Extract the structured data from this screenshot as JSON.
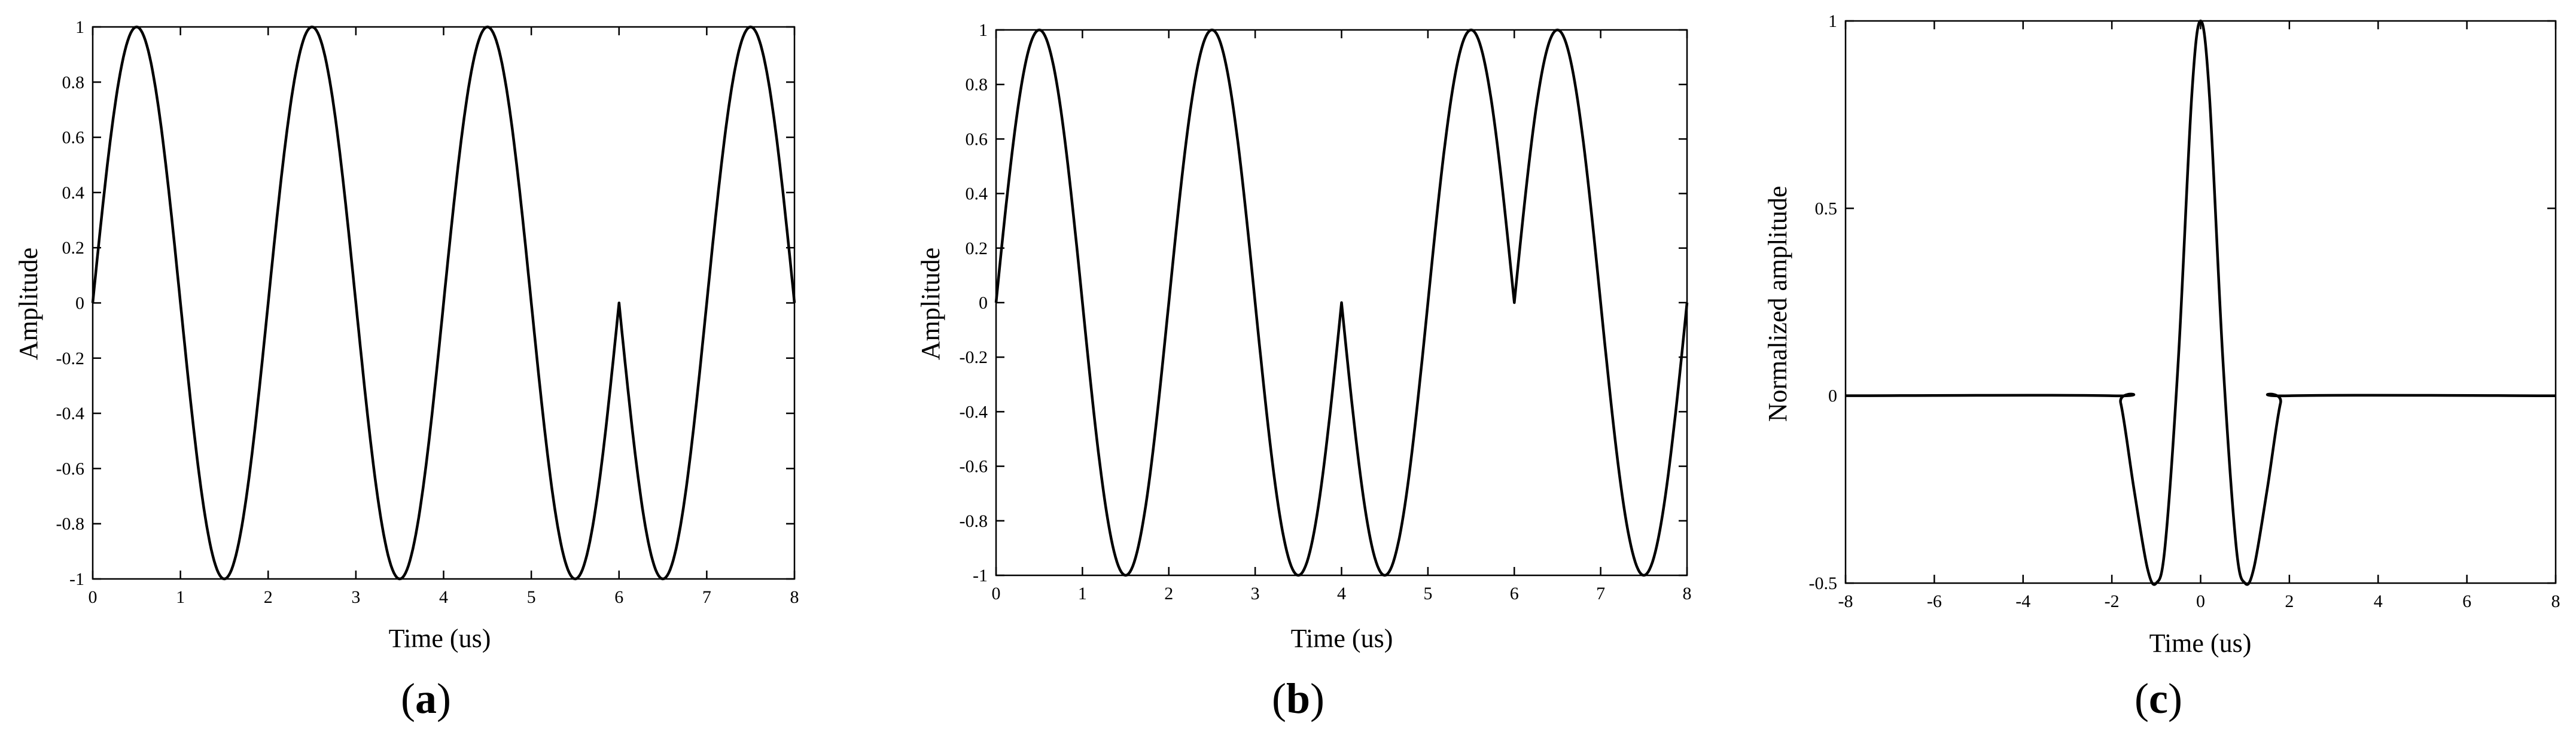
{
  "chart_data": [
    {
      "type": "line",
      "panel_label": "a",
      "xlabel": "Time (us)",
      "ylabel": "Amplitude",
      "xlim": [
        0,
        8
      ],
      "ylim": [
        -1,
        1
      ],
      "xticks": [
        "0",
        "1",
        "2",
        "3",
        "4",
        "5",
        "6",
        "7",
        "8"
      ],
      "yticks": [
        "-1",
        "-0.8",
        "-0.6",
        "-0.4",
        "-0.2",
        "0",
        "0.2",
        "0.4",
        "0.6",
        "0.8",
        "1"
      ],
      "grid": false,
      "series": [
        {
          "x": [
            0,
            0.5,
            1,
            1.5,
            2,
            2.5,
            3,
            3.5,
            4,
            4.5,
            5,
            5.5,
            6,
            6.5,
            7,
            7.5,
            8
          ],
          "y": [
            0,
            1,
            0,
            -1,
            0,
            1,
            0,
            -1,
            0,
            1,
            0,
            -1,
            0,
            -1,
            0,
            1,
            0
          ]
        }
      ]
    },
    {
      "type": "line",
      "panel_label": "b",
      "xlabel": "Time (us)",
      "ylabel": "Amplitude",
      "xlim": [
        0,
        8
      ],
      "ylim": [
        -1,
        1
      ],
      "xticks": [
        "0",
        "1",
        "2",
        "3",
        "4",
        "5",
        "6",
        "7",
        "8"
      ],
      "yticks": [
        "-1",
        "-0.8",
        "-0.6",
        "-0.4",
        "-0.2",
        "0",
        "0.2",
        "0.4",
        "0.6",
        "0.8",
        "1"
      ],
      "grid": false,
      "series": [
        {
          "x": [
            0,
            0.5,
            1,
            1.5,
            2,
            2.5,
            3,
            3.5,
            4,
            4.5,
            5,
            5.5,
            6,
            6.5,
            7,
            7.5,
            8
          ],
          "y": [
            0,
            1,
            0,
            -1,
            0,
            1,
            0,
            -1,
            0,
            -1,
            0,
            1,
            0,
            1,
            0,
            -1,
            0
          ]
        }
      ]
    },
    {
      "type": "line",
      "panel_label": "c",
      "xlabel": "Time (us)",
      "ylabel": "Normalized amplitude",
      "xlim": [
        -8,
        8
      ],
      "ylim": [
        -0.5,
        1
      ],
      "xticks": [
        "-8",
        "-6",
        "-4",
        "-2",
        "0",
        "2",
        "4",
        "6",
        "8"
      ],
      "yticks": [
        "-0.5",
        "0",
        "0.5",
        "1"
      ],
      "grid": false,
      "series": [
        {
          "x": [
            -8,
            -2,
            -1.8,
            -1.5,
            -1.2,
            -1,
            -0.8,
            -0.5,
            -0.2,
            0,
            0.2,
            0.5,
            0.8,
            1,
            1.2,
            1.5,
            1.8,
            2,
            8
          ],
          "y": [
            0,
            0,
            -0.02,
            -0.25,
            -0.46,
            -0.5,
            -0.4,
            0.1,
            0.8,
            1,
            0.8,
            0.1,
            -0.4,
            -0.5,
            -0.46,
            -0.25,
            -0.02,
            0,
            0
          ]
        }
      ]
    }
  ]
}
